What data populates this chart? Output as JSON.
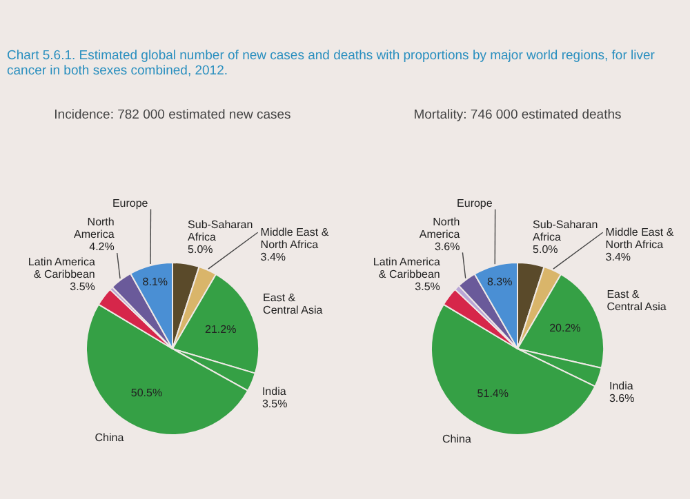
{
  "chart_data": [
    {
      "type": "pie",
      "title": "Chart 5.6.1. Estimated global number of new cases and deaths with proportions by major world regions, for liver cancer in both sexes combined, 2012.",
      "subtitle": "Incidence: 782 000 estimated new cases",
      "categories": [
        "Sub-Saharan Africa",
        "Middle East & North Africa",
        "East & Central Asia",
        "India",
        "China",
        "Latin America & Caribbean",
        null,
        "North America",
        "Europe"
      ],
      "values": [
        5.0,
        3.4,
        21.2,
        3.5,
        50.5,
        3.5,
        0.6,
        4.2,
        8.1
      ],
      "value_labels": [
        "5.0%",
        "3.4%",
        "21.2%",
        "3.5%",
        "50.5%",
        "3.5%",
        null,
        "4.2%",
        "8.1%"
      ],
      "colors": [
        "#5a4a2a",
        "#d9b56a",
        "#35a045",
        "#35a045",
        "#35a045",
        "#d6264a",
        "#b9a6d6",
        "#6a5a9a",
        "#4a8fd4"
      ]
    },
    {
      "type": "pie",
      "title": "Mortality: 746 000 estimated deaths",
      "categories": [
        "Sub-Saharan Africa",
        "Middle East & North Africa",
        "East & Central Asia",
        "India",
        "China",
        "Latin America & Caribbean",
        null,
        "North America",
        "Europe"
      ],
      "values": [
        5.0,
        3.4,
        20.2,
        3.6,
        51.4,
        3.5,
        1.0,
        3.6,
        8.3
      ],
      "value_labels": [
        "5.0%",
        "3.4%",
        "20.2%",
        "3.6%",
        "51.4%",
        "3.5%",
        null,
        "3.6%",
        "8.3%"
      ],
      "colors": [
        "#5a4a2a",
        "#d9b56a",
        "#35a045",
        "#35a045",
        "#35a045",
        "#d6264a",
        "#b9a6d6",
        "#6a5a9a",
        "#4a8fd4"
      ]
    }
  ]
}
